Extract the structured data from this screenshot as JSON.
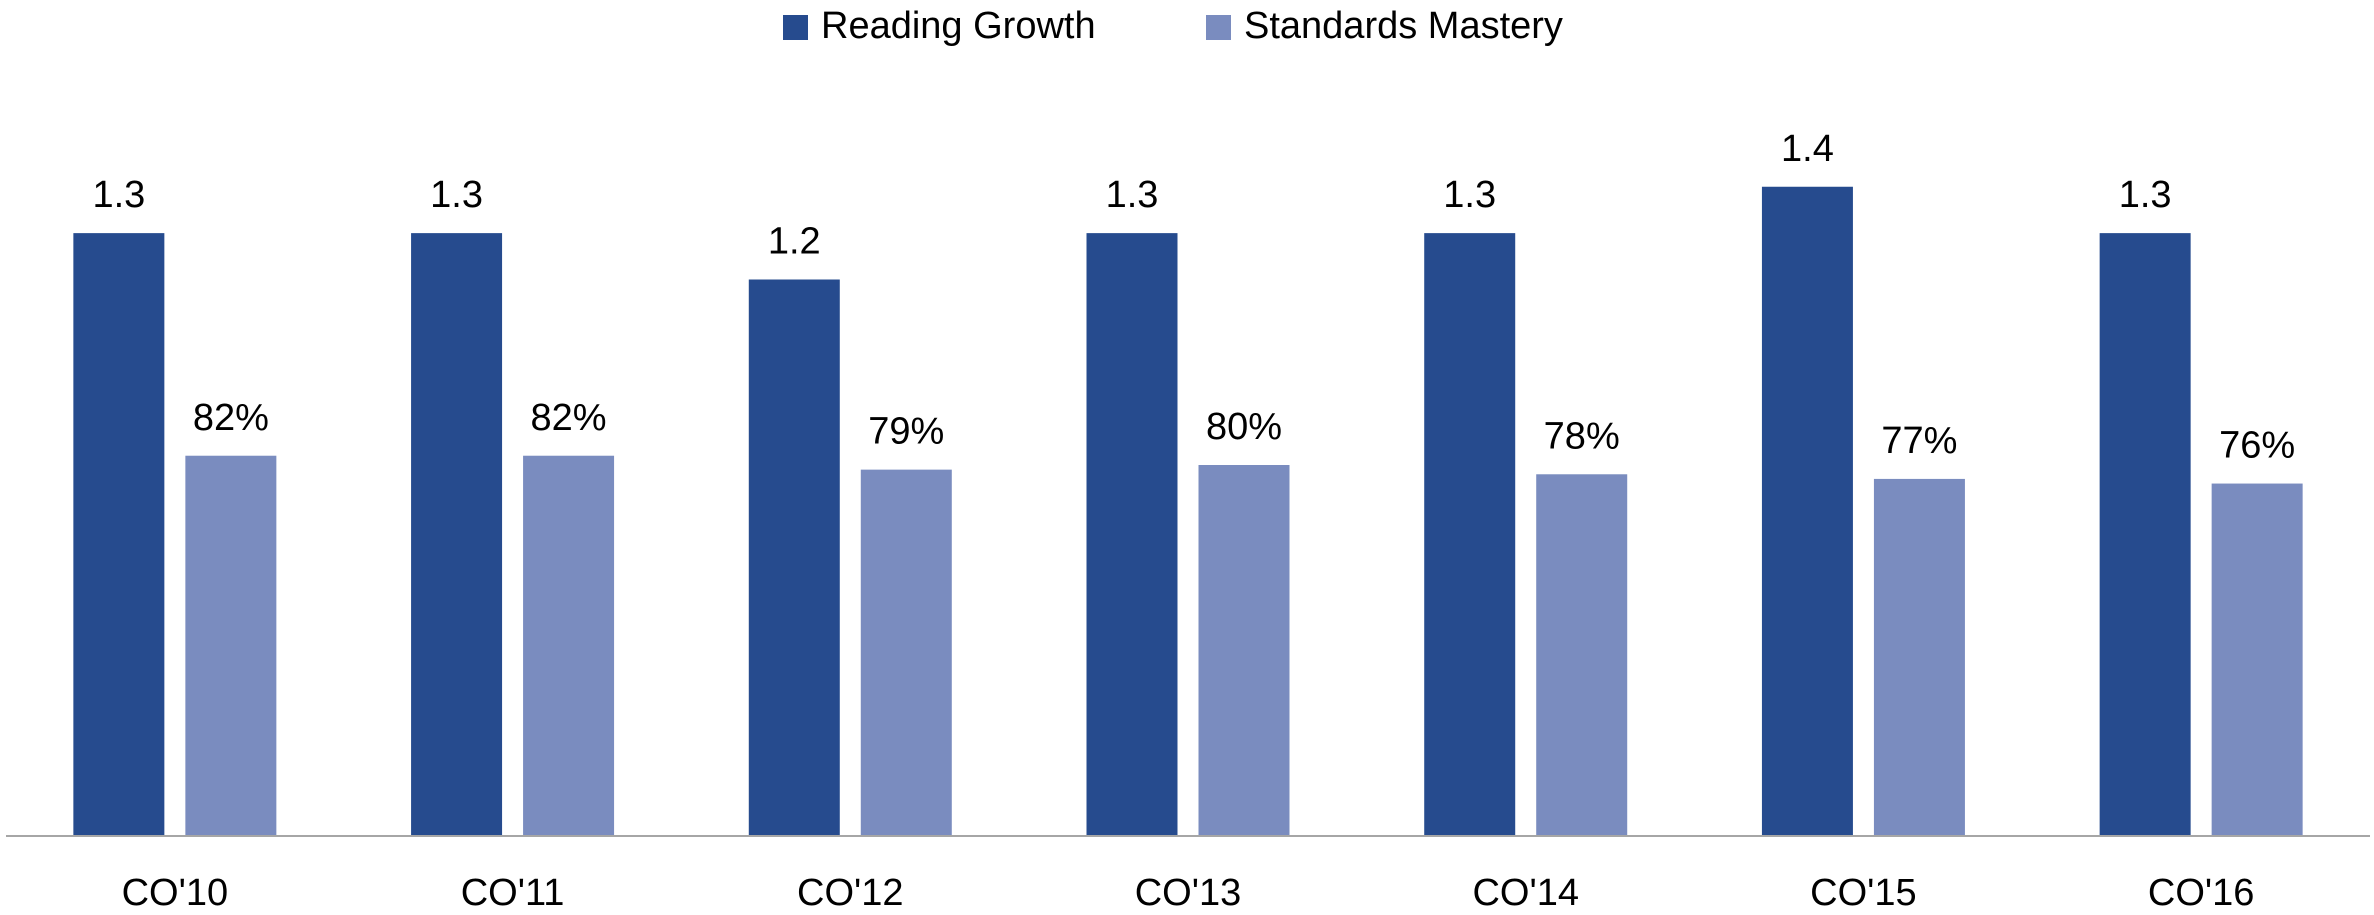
{
  "chart_data": {
    "type": "bar",
    "categories": [
      "CO'10",
      "CO'11",
      "CO'12",
      "CO'13",
      "CO'14",
      "CO'15",
      "CO'16"
    ],
    "series": [
      {
        "name": "Reading Growth",
        "color": "#264b8e",
        "values": [
          1.3,
          1.3,
          1.2,
          1.3,
          1.3,
          1.4,
          1.3
        ]
      },
      {
        "name": "Standards Mastery",
        "color": "#7a8cbf",
        "axis": "y2",
        "values": [
          82,
          82,
          79,
          80,
          78,
          77,
          76
        ],
        "value_labels": [
          "82%",
          "82%",
          "79%",
          "80%",
          "78%",
          "77%",
          "76%"
        ]
      }
    ],
    "ylim": [
      0,
      1.6
    ],
    "y2lim": [
      0,
      160
    ],
    "legend": "top",
    "grid": false
  }
}
